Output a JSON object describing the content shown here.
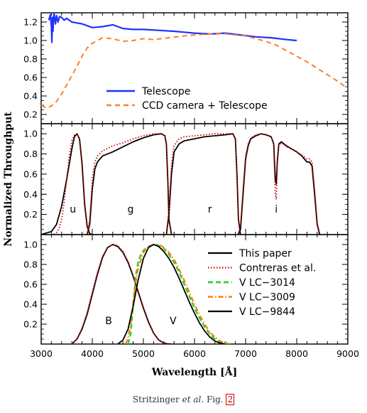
{
  "colors": {
    "telescope": "#1f32ff",
    "ccd": "#ff7f2a",
    "this_paper": "#000000",
    "contreras": "#d00000",
    "v_lc3014": "#33cc33",
    "v_lc3009": "#ff7f00",
    "v_lc9844": "#000000"
  },
  "ylabel": "Normalized Throughput",
  "xlabel": "Wavelength [Å]",
  "x_ticks": [
    "3000",
    "4000",
    "5000",
    "6000",
    "7000",
    "8000",
    "9000"
  ],
  "caption": {
    "prefix": "Stritzinger ",
    "italic": "et al.",
    "middle": " Fig. ",
    "ref": "2"
  },
  "chart_data": [
    {
      "type": "line",
      "panel": "top",
      "xlim": [
        3000,
        9000
      ],
      "ylim": [
        0.1,
        1.3
      ],
      "y_ticks": [
        "0.2",
        "0.4",
        "0.6",
        "0.8",
        "1.0",
        "1.2"
      ],
      "legend_position": "lower-left",
      "series": [
        {
          "name": "Telescope",
          "style": "solid",
          "x": [
            3150,
            3180,
            3200,
            3210,
            3220,
            3230,
            3250,
            3280,
            3300,
            3330,
            3360,
            3400,
            3450,
            3500,
            3600,
            3700,
            3800,
            3900,
            4000,
            4200,
            4400,
            4600,
            4800,
            5000,
            5300,
            5600,
            6000,
            6300,
            6600,
            6900,
            7200,
            7500,
            7800,
            8000
          ],
          "y": [
            1.22,
            1.28,
            1.15,
            0.98,
            1.25,
            1.1,
            1.3,
            1.18,
            1.27,
            1.2,
            1.26,
            1.25,
            1.22,
            1.24,
            1.2,
            1.19,
            1.18,
            1.16,
            1.14,
            1.15,
            1.17,
            1.13,
            1.12,
            1.12,
            1.11,
            1.1,
            1.08,
            1.07,
            1.08,
            1.06,
            1.04,
            1.03,
            1.01,
            1.0
          ]
        },
        {
          "name": "CCD camera + Telescope",
          "style": "dashed",
          "x": [
            3000,
            3100,
            3200,
            3300,
            3400,
            3500,
            3600,
            3700,
            3800,
            3900,
            4000,
            4200,
            4400,
            4600,
            4800,
            5000,
            5200,
            5500,
            5800,
            6000,
            6300,
            6500,
            6800,
            7000,
            7200,
            7400,
            7600,
            7800,
            8000,
            8200,
            8400,
            8600,
            8800,
            9000
          ],
          "y": [
            0.3,
            0.27,
            0.29,
            0.34,
            0.42,
            0.52,
            0.62,
            0.72,
            0.83,
            0.92,
            0.97,
            1.03,
            1.02,
            0.99,
            1.0,
            1.02,
            1.01,
            1.03,
            1.05,
            1.06,
            1.07,
            1.08,
            1.06,
            1.05,
            1.02,
            0.99,
            0.95,
            0.89,
            0.83,
            0.77,
            0.7,
            0.63,
            0.56,
            0.48
          ]
        }
      ]
    },
    {
      "type": "line",
      "panel": "middle",
      "xlim": [
        3000,
        9000
      ],
      "ylim": [
        0,
        1.1
      ],
      "y_ticks": [
        "0.2",
        "0.4",
        "0.6",
        "0.8",
        "1.0"
      ],
      "band_labels": [
        {
          "text": "u",
          "x": 3620,
          "y": 0.22
        },
        {
          "text": "g",
          "x": 4750,
          "y": 0.22
        },
        {
          "text": "r",
          "x": 6300,
          "y": 0.22
        },
        {
          "text": "i",
          "x": 7600,
          "y": 0.22
        }
      ],
      "series": [
        {
          "name": "This paper u",
          "style": "solid",
          "x": [
            3000,
            3200,
            3300,
            3400,
            3500,
            3600,
            3650,
            3700,
            3750,
            3800,
            3850,
            3900,
            3950,
            4000
          ],
          "y": [
            0,
            0.03,
            0.1,
            0.28,
            0.55,
            0.85,
            0.97,
            1.0,
            0.95,
            0.7,
            0.3,
            0.08,
            0.01,
            0
          ]
        },
        {
          "name": "Contreras u",
          "style": "dotted",
          "x": [
            3250,
            3300,
            3350,
            3400,
            3450,
            3500,
            3550,
            3600,
            3650,
            3700,
            3750,
            3800,
            3850,
            3900,
            3950
          ],
          "y": [
            0,
            0.02,
            0.06,
            0.15,
            0.32,
            0.55,
            0.78,
            0.93,
            0.99,
            1.0,
            0.95,
            0.72,
            0.33,
            0.08,
            0
          ]
        },
        {
          "name": "This paper g",
          "style": "solid",
          "x": [
            3900,
            3950,
            4000,
            4050,
            4100,
            4200,
            4400,
            4600,
            4800,
            5000,
            5200,
            5350,
            5420,
            5450,
            5480,
            5500,
            5550
          ],
          "y": [
            0,
            0.1,
            0.45,
            0.65,
            0.72,
            0.78,
            0.82,
            0.87,
            0.92,
            0.96,
            0.99,
            1.0,
            0.98,
            0.9,
            0.5,
            0.15,
            0
          ]
        },
        {
          "name": "Contreras g",
          "style": "dotted",
          "x": [
            3900,
            3950,
            4000,
            4050,
            4100,
            4200,
            4400,
            4600,
            4800,
            5000,
            5200,
            5350,
            5420,
            5450,
            5480,
            5500,
            5550
          ],
          "y": [
            0,
            0.15,
            0.55,
            0.72,
            0.78,
            0.83,
            0.88,
            0.91,
            0.95,
            0.98,
            1.0,
            1.0,
            0.98,
            0.9,
            0.5,
            0.15,
            0
          ]
        },
        {
          "name": "This paper r",
          "style": "solid",
          "x": [
            5450,
            5500,
            5550,
            5600,
            5700,
            5800,
            6000,
            6200,
            6400,
            6600,
            6750,
            6800,
            6830,
            6860,
            6900
          ],
          "y": [
            0,
            0.2,
            0.6,
            0.82,
            0.9,
            0.93,
            0.95,
            0.97,
            0.98,
            0.99,
            1.0,
            0.95,
            0.6,
            0.15,
            0
          ]
        },
        {
          "name": "Contreras r",
          "style": "dotted",
          "x": [
            5450,
            5500,
            5550,
            5600,
            5700,
            5800,
            6000,
            6200,
            6400,
            6600,
            6750,
            6800,
            6830,
            6860,
            6900
          ],
          "y": [
            0,
            0.25,
            0.7,
            0.88,
            0.95,
            0.97,
            0.98,
            0.99,
            1.0,
            1.0,
            1.0,
            0.95,
            0.6,
            0.15,
            0
          ]
        },
        {
          "name": "This paper i",
          "style": "solid",
          "x": [
            6850,
            6900,
            6950,
            7000,
            7050,
            7100,
            7200,
            7300,
            7400,
            7500,
            7550,
            7580,
            7600,
            7620,
            7650,
            7700,
            7800,
            7900,
            8000,
            8100,
            8200,
            8250,
            8300,
            8350,
            8400,
            8450
          ],
          "y": [
            0,
            0.05,
            0.4,
            0.75,
            0.88,
            0.95,
            0.98,
            1.0,
            0.99,
            0.97,
            0.9,
            0.55,
            0.5,
            0.72,
            0.9,
            0.92,
            0.88,
            0.85,
            0.82,
            0.78,
            0.72,
            0.72,
            0.68,
            0.4,
            0.1,
            0
          ]
        },
        {
          "name": "Contreras i",
          "style": "dotted",
          "x": [
            6850,
            6900,
            6950,
            7000,
            7050,
            7100,
            7200,
            7300,
            7400,
            7500,
            7550,
            7580,
            7600,
            7620,
            7650,
            7700,
            7800,
            7900,
            8000,
            8100,
            8200,
            8250,
            8300,
            8350,
            8400,
            8450
          ],
          "y": [
            0,
            0.08,
            0.45,
            0.78,
            0.9,
            0.96,
            0.99,
            1.0,
            0.99,
            0.97,
            0.9,
            0.4,
            0.35,
            0.7,
            0.88,
            0.91,
            0.87,
            0.85,
            0.82,
            0.79,
            0.75,
            0.75,
            0.72,
            0.45,
            0.12,
            0
          ]
        }
      ]
    },
    {
      "type": "line",
      "panel": "bottom",
      "xlim": [
        3000,
        9000
      ],
      "ylim": [
        0,
        1.1
      ],
      "y_ticks": [
        "0.2",
        "0.4",
        "0.6",
        "0.8",
        "1.0"
      ],
      "legend_position": "top-right",
      "band_labels": [
        {
          "text": "B",
          "x": 4320,
          "y": 0.2
        },
        {
          "text": "V",
          "x": 5580,
          "y": 0.2
        }
      ],
      "series": [
        {
          "name": "This paper",
          "style": "solid",
          "legend": true,
          "x": [
            3600,
            3700,
            3800,
            3900,
            4000,
            4100,
            4200,
            4300,
            4400,
            4500,
            4600,
            4700,
            4800,
            4900,
            5000,
            5100,
            5200,
            5300,
            5400,
            5500,
            5550
          ],
          "y": [
            0,
            0.05,
            0.15,
            0.3,
            0.5,
            0.7,
            0.87,
            0.97,
            1.0,
            0.98,
            0.92,
            0.82,
            0.68,
            0.52,
            0.36,
            0.22,
            0.11,
            0.04,
            0.01,
            0,
            0
          ]
        },
        {
          "name": "Contreras et al.",
          "style": "dotted",
          "legend": true,
          "x": [
            3600,
            3700,
            3800,
            3900,
            4000,
            4100,
            4200,
            4300,
            4400,
            4500,
            4600,
            4700,
            4800,
            4900,
            5000,
            5100,
            5200,
            5300,
            5400,
            5500
          ],
          "y": [
            0,
            0.05,
            0.16,
            0.32,
            0.52,
            0.72,
            0.88,
            0.97,
            1.0,
            0.99,
            0.93,
            0.83,
            0.69,
            0.53,
            0.37,
            0.23,
            0.11,
            0.04,
            0.01,
            0
          ]
        },
        {
          "name": "V LC−3014",
          "style": "dashed",
          "legend": true,
          "x": [
            4700,
            4750,
            4800,
            4850,
            4900,
            4950,
            5000,
            5100,
            5200,
            5300,
            5400,
            5500,
            5600,
            5700,
            5800,
            5900,
            6000,
            6100,
            6200,
            6300,
            6400,
            6500,
            6600,
            6700
          ],
          "y": [
            0,
            0.1,
            0.4,
            0.68,
            0.83,
            0.9,
            0.94,
            0.98,
            1.0,
            0.99,
            0.96,
            0.9,
            0.82,
            0.72,
            0.6,
            0.48,
            0.36,
            0.26,
            0.17,
            0.1,
            0.05,
            0.02,
            0.01,
            0
          ]
        },
        {
          "name": "V LC−3009",
          "style": "dashdot",
          "legend": true,
          "x": [
            4650,
            4700,
            4750,
            4800,
            4850,
            4900,
            5000,
            5100,
            5200,
            5300,
            5400,
            5500,
            5600,
            5700,
            5800,
            5900,
            6000,
            6100,
            6200,
            6300,
            6400,
            6500,
            6600,
            6700
          ],
          "y": [
            0,
            0.06,
            0.2,
            0.42,
            0.62,
            0.77,
            0.92,
            0.98,
            1.0,
            1.0,
            0.97,
            0.92,
            0.85,
            0.75,
            0.64,
            0.52,
            0.4,
            0.29,
            0.2,
            0.12,
            0.07,
            0.03,
            0.01,
            0
          ]
        },
        {
          "name": "V LC−9844",
          "style": "solid",
          "legend": true,
          "x": [
            4500,
            4600,
            4700,
            4800,
            4900,
            5000,
            5100,
            5200,
            5300,
            5400,
            5500,
            5600,
            5700,
            5800,
            5900,
            6000,
            6100,
            6200,
            6300,
            6400,
            6500,
            6600
          ],
          "y": [
            0,
            0.04,
            0.15,
            0.38,
            0.65,
            0.86,
            0.97,
            1.0,
            0.98,
            0.93,
            0.86,
            0.77,
            0.66,
            0.54,
            0.42,
            0.31,
            0.21,
            0.13,
            0.07,
            0.03,
            0.01,
            0
          ]
        }
      ]
    }
  ]
}
